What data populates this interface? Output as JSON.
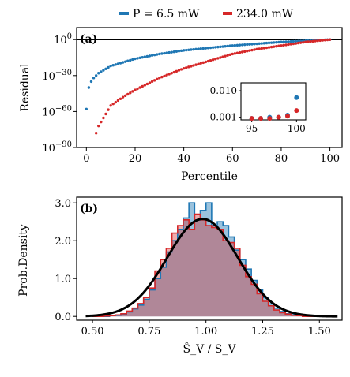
{
  "legend": [
    {
      "label": "P = 6.5 mW",
      "color": "#1f77b4"
    },
    {
      "label": "234.0 mW",
      "color": "#d62728"
    }
  ],
  "chart_data": [
    {
      "panel": "(a)",
      "type": "scatter",
      "xlabel": "Percentile",
      "ylabel": "Residual",
      "y_scale": "log",
      "xlim": [
        -4,
        105
      ],
      "ylim_log10": [
        -90,
        10
      ],
      "x_ticks": [
        "0",
        "20",
        "40",
        "60",
        "80",
        "100"
      ],
      "y_ticks": [
        "10^0",
        "10^-30",
        "10^-60",
        "10^-90"
      ],
      "reference_line_log10": 0,
      "series": [
        {
          "name": "P = 6.5 mW",
          "color": "#1f77b4",
          "x": [
            0,
            1,
            2,
            3,
            5,
            10,
            20,
            30,
            40,
            50,
            60,
            70,
            80,
            90,
            100
          ],
          "y_log10": [
            -58,
            -40,
            -35,
            -32,
            -28,
            -22,
            -16,
            -12,
            -9,
            -7,
            -5,
            -3.5,
            -2,
            -1,
            0
          ]
        },
        {
          "name": "234.0 mW",
          "color": "#d62728",
          "x": [
            4,
            5,
            8,
            10,
            15,
            20,
            30,
            40,
            50,
            60,
            70,
            80,
            90,
            100
          ],
          "y_log10": [
            -78,
            -72,
            -62,
            -55,
            -48,
            -42,
            -32,
            -24,
            -18,
            -12,
            -8,
            -5,
            -2,
            0
          ]
        }
      ],
      "inset": {
        "x_ticks": [
          "95",
          "100"
        ],
        "y_ticks": [
          "0.010",
          "0.001"
        ],
        "xlim": [
          94.5,
          100.5
        ],
        "ylim_log10": [
          -3.1,
          -1.7
        ],
        "series": [
          {
            "name": "P = 6.5 mW",
            "x": [
              95,
              96,
              97,
              98,
              99,
              100
            ],
            "y": [
              0.0009,
              0.0009,
              0.001,
              0.001,
              0.0012,
              0.0055
            ]
          },
          {
            "name": "234.0 mW",
            "x": [
              95,
              96,
              97,
              98,
              99,
              100
            ],
            "y": [
              0.0009,
              0.0009,
              0.0009,
              0.001,
              0.0011,
              0.0018
            ]
          }
        ]
      }
    },
    {
      "panel": "(b)",
      "type": "histogram",
      "xlabel": "Ŝ_V / S_V",
      "ylabel": "Prob.Density",
      "xlim": [
        0.43,
        1.6
      ],
      "ylim": [
        -0.1,
        3.15
      ],
      "x_ticks": [
        "0.50",
        "0.75",
        "1.00",
        "1.25",
        "1.50"
      ],
      "y_ticks": [
        "0.0",
        "1.0",
        "2.0",
        "3.0"
      ],
      "fit_curve": {
        "type": "normal",
        "mean": 0.985,
        "std": 0.155,
        "color": "#000000"
      },
      "series": [
        {
          "name": "P = 6.5 mW",
          "color": "#1f77b4",
          "bin_start": 0.5,
          "bin_width": 0.025,
          "values": [
            0.0,
            0.0,
            0.0,
            0.02,
            0.03,
            0.06,
            0.12,
            0.2,
            0.3,
            0.45,
            0.7,
            1.0,
            1.3,
            1.7,
            2.0,
            2.3,
            2.6,
            3.0,
            2.55,
            2.8,
            3.0,
            2.4,
            2.5,
            2.4,
            2.1,
            1.75,
            1.5,
            1.25,
            0.95,
            0.7,
            0.5,
            0.33,
            0.22,
            0.13,
            0.07,
            0.04,
            0.02,
            0.01,
            0.0,
            0.0,
            0.0
          ]
        },
        {
          "name": "234.0 mW",
          "color": "#d62728",
          "bin_start": 0.5,
          "bin_width": 0.025,
          "values": [
            0.0,
            0.0,
            0.01,
            0.02,
            0.04,
            0.07,
            0.14,
            0.22,
            0.34,
            0.5,
            0.75,
            1.2,
            1.5,
            1.8,
            2.2,
            2.4,
            2.55,
            2.3,
            2.7,
            2.55,
            2.4,
            2.35,
            2.3,
            2.0,
            1.95,
            1.8,
            1.35,
            1.05,
            0.85,
            0.6,
            0.4,
            0.28,
            0.17,
            0.1,
            0.06,
            0.03,
            0.02,
            0.0,
            0.0,
            0.0,
            0.0
          ]
        }
      ]
    }
  ]
}
